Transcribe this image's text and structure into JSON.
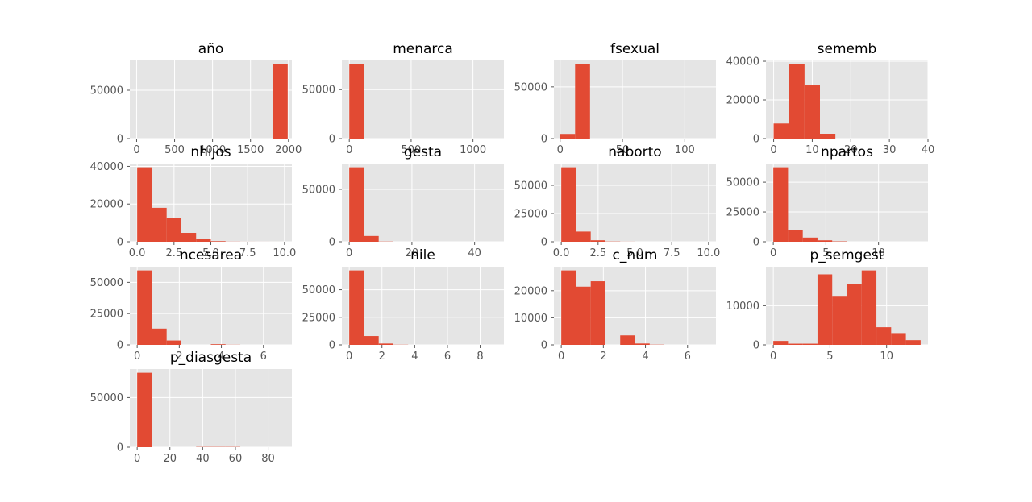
{
  "chart_data": [
    {
      "type": "bar",
      "title": "año",
      "bins": [
        [
          1790,
          1990,
          77000
        ]
      ],
      "xlim": [
        -90,
        2045
      ],
      "ylim": [
        0,
        80850
      ],
      "xticks": [
        0,
        500,
        1000,
        1500,
        2000
      ],
      "xtick_labels": [
        "0",
        "500",
        "1000",
        "1500",
        "2000"
      ],
      "yticks": [
        0,
        50000
      ],
      "ytick_labels": [
        "0",
        "50000"
      ],
      "bar_color": "#E24A33"
    },
    {
      "type": "bar",
      "title": "menarca",
      "bins": [
        [
          0,
          120,
          76000
        ]
      ],
      "xlim": [
        -60,
        1250
      ],
      "ylim": [
        0,
        79800
      ],
      "xticks": [
        0,
        500,
        1000
      ],
      "xtick_labels": [
        "0",
        "500",
        "1000"
      ],
      "yticks": [
        0,
        50000
      ],
      "ytick_labels": [
        "0",
        "50000"
      ],
      "bar_color": "#E24A33"
    },
    {
      "type": "bar",
      "title": "fsexual",
      "bins": [
        [
          0,
          12,
          4500
        ],
        [
          12,
          24,
          72000
        ]
      ],
      "xlim": [
        -5,
        125
      ],
      "ylim": [
        0,
        75600
      ],
      "xticks": [
        0,
        50,
        100
      ],
      "xtick_labels": [
        "0",
        "50",
        "100"
      ],
      "yticks": [
        0,
        50000
      ],
      "ytick_labels": [
        "0",
        "50000"
      ],
      "bar_color": "#E24A33"
    },
    {
      "type": "bar",
      "title": "sememb",
      "bins": [
        [
          0,
          4,
          7800
        ],
        [
          4,
          8,
          38500
        ],
        [
          8,
          12,
          27500
        ],
        [
          12,
          16,
          2500
        ]
      ],
      "xlim": [
        -2,
        40
      ],
      "ylim": [
        0,
        40425
      ],
      "xticks": [
        0,
        10,
        20,
        30,
        40
      ],
      "xtick_labels": [
        "0",
        "10",
        "20",
        "30",
        "40"
      ],
      "yticks": [
        0,
        20000,
        40000
      ],
      "ytick_labels": [
        "0",
        "20000",
        "40000"
      ],
      "bar_color": "#E24A33"
    },
    {
      "type": "bar",
      "title": "nhijos",
      "bins": [
        [
          0,
          1,
          39500
        ],
        [
          1,
          2,
          18000
        ],
        [
          2,
          3,
          12800
        ],
        [
          3,
          4,
          4700
        ],
        [
          4,
          5,
          1400
        ],
        [
          5,
          6,
          300
        ],
        [
          6,
          7,
          60
        ],
        [
          7,
          8,
          20
        ],
        [
          8,
          9,
          8
        ],
        [
          9,
          10,
          3
        ]
      ],
      "xlim": [
        -0.5,
        10.5
      ],
      "ylim": [
        0,
        41475
      ],
      "xticks": [
        0,
        2.5,
        5,
        7.5,
        10
      ],
      "xtick_labels": [
        "0.0",
        "2.5",
        "5.0",
        "7.5",
        "10.0"
      ],
      "yticks": [
        0,
        20000,
        40000
      ],
      "ytick_labels": [
        "0",
        "20000",
        "40000"
      ],
      "bar_color": "#E24A33"
    },
    {
      "type": "bar",
      "title": "gesta",
      "bins": [
        [
          0,
          4.7,
          71000
        ],
        [
          4.7,
          9.4,
          5500
        ],
        [
          9.4,
          14.1,
          200
        ]
      ],
      "xlim": [
        -2.35,
        49.35
      ],
      "ylim": [
        0,
        74550
      ],
      "xticks": [
        0,
        20,
        40
      ],
      "xtick_labels": [
        "0",
        "20",
        "40"
      ],
      "yticks": [
        0,
        50000
      ],
      "ytick_labels": [
        "0",
        "50000"
      ],
      "bar_color": "#E24A33"
    },
    {
      "type": "bar",
      "title": "naborto",
      "bins": [
        [
          0,
          1,
          66000
        ],
        [
          1,
          2,
          9000
        ],
        [
          2,
          3,
          1300
        ],
        [
          3,
          4,
          200
        ],
        [
          4,
          5,
          60
        ]
      ],
      "xlim": [
        -0.5,
        10.5
      ],
      "ylim": [
        0,
        69300
      ],
      "xticks": [
        0,
        2.5,
        5,
        7.5,
        10
      ],
      "xtick_labels": [
        "0.0",
        "2.5",
        "5.0",
        "7.5",
        "10.0"
      ],
      "yticks": [
        0,
        25000,
        50000
      ],
      "ytick_labels": [
        "0",
        "25000",
        "50000"
      ],
      "bar_color": "#E24A33"
    },
    {
      "type": "bar",
      "title": "npartos",
      "bins": [
        [
          0,
          1.4,
          62500
        ],
        [
          1.4,
          2.8,
          9500
        ],
        [
          2.8,
          4.2,
          3500
        ],
        [
          4.2,
          5.6,
          1200
        ],
        [
          5.6,
          7,
          300
        ]
      ],
      "xlim": [
        -0.7,
        14.7
      ],
      "ylim": [
        0,
        65625
      ],
      "xticks": [
        0,
        5,
        10
      ],
      "xtick_labels": [
        "0",
        "5",
        "10"
      ],
      "yticks": [
        0,
        25000,
        50000
      ],
      "ytick_labels": [
        "0",
        "25000",
        "50000"
      ],
      "bar_color": "#E24A33"
    },
    {
      "type": "bar",
      "title": "ncesarea",
      "bins": [
        [
          0,
          0.7,
          59500
        ],
        [
          0.7,
          1.4,
          13000
        ],
        [
          1.4,
          2.1,
          3500
        ],
        [
          3.5,
          4.2,
          500
        ],
        [
          4.2,
          4.9,
          100
        ]
      ],
      "xlim": [
        -0.35,
        7.35
      ],
      "ylim": [
        0,
        62475
      ],
      "xticks": [
        0,
        2,
        4,
        6
      ],
      "xtick_labels": [
        "0",
        "2",
        "4",
        "6"
      ],
      "yticks": [
        0,
        25000,
        50000
      ],
      "ytick_labels": [
        "0",
        "25000",
        "50000"
      ],
      "bar_color": "#E24A33"
    },
    {
      "type": "bar",
      "title": "nile",
      "bins": [
        [
          0,
          0.9,
          67500
        ],
        [
          0.9,
          1.8,
          8000
        ],
        [
          1.8,
          2.7,
          1200
        ],
        [
          2.7,
          3.6,
          150
        ]
      ],
      "xlim": [
        -0.45,
        9.45
      ],
      "ylim": [
        0,
        70875
      ],
      "xticks": [
        0,
        2,
        4,
        6,
        8
      ],
      "xtick_labels": [
        "0",
        "2",
        "4",
        "6",
        "8"
      ],
      "yticks": [
        0,
        25000,
        50000
      ],
      "ytick_labels": [
        "0",
        "25000",
        "50000"
      ],
      "bar_color": "#E24A33"
    },
    {
      "type": "bar",
      "title": "c_num",
      "bins": [
        [
          0,
          0.7,
          27500
        ],
        [
          0.7,
          1.4,
          21500
        ],
        [
          1.4,
          2.1,
          23500
        ],
        [
          2.8,
          3.5,
          3500
        ],
        [
          3.5,
          4.2,
          500
        ],
        [
          4.2,
          4.9,
          80
        ]
      ],
      "xlim": [
        -0.35,
        7.35
      ],
      "ylim": [
        0,
        28875
      ],
      "xticks": [
        0,
        2,
        4,
        6
      ],
      "xtick_labels": [
        "0",
        "2",
        "4",
        "6"
      ],
      "yticks": [
        0,
        10000,
        20000
      ],
      "ytick_labels": [
        "0",
        "10000",
        "20000"
      ],
      "bar_color": "#E24A33"
    },
    {
      "type": "bar",
      "title": "p_semgest",
      "bins": [
        [
          0,
          1.3,
          1000
        ],
        [
          1.3,
          2.6,
          300
        ],
        [
          2.6,
          3.9,
          300
        ],
        [
          3.9,
          5.2,
          18000
        ],
        [
          5.2,
          6.5,
          12500
        ],
        [
          6.5,
          7.8,
          15500
        ],
        [
          7.8,
          9.1,
          19000
        ],
        [
          9.1,
          10.4,
          4500
        ],
        [
          10.4,
          11.7,
          3000
        ],
        [
          11.7,
          13,
          1200
        ]
      ],
      "xlim": [
        -0.65,
        13.65
      ],
      "ylim": [
        0,
        19950
      ],
      "xticks": [
        0,
        5,
        10
      ],
      "xtick_labels": [
        "0",
        "5",
        "10"
      ],
      "yticks": [
        0,
        10000
      ],
      "ytick_labels": [
        "0",
        "10000"
      ],
      "bar_color": "#E24A33"
    },
    {
      "type": "bar",
      "title": "p_diasgesta",
      "bins": [
        [
          0,
          9,
          75000
        ],
        [
          36,
          45,
          250
        ],
        [
          45,
          54,
          250
        ],
        [
          54,
          63,
          250
        ]
      ],
      "xlim": [
        -4.5,
        94.5
      ],
      "ylim": [
        0,
        78750
      ],
      "xticks": [
        0,
        20,
        40,
        60,
        80
      ],
      "xtick_labels": [
        "0",
        "20",
        "40",
        "60",
        "80"
      ],
      "yticks": [
        0,
        50000
      ],
      "ytick_labels": [
        "0",
        "50000"
      ],
      "bar_color": "#E24A33"
    }
  ]
}
